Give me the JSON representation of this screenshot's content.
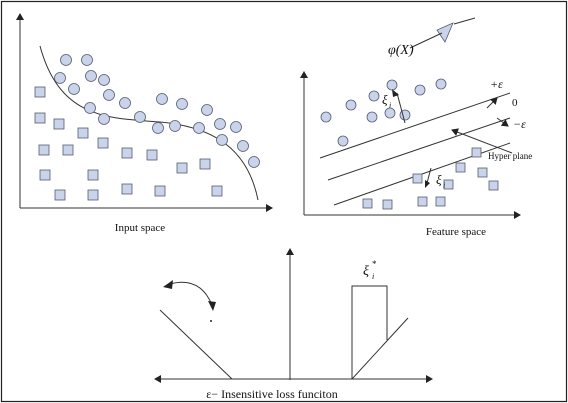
{
  "panels": {
    "input_space": {
      "caption": "Input space"
    },
    "feature_space": {
      "caption": "Feature space",
      "hyperplane_label": "Hyper plane",
      "plus_eps": "+ε",
      "zero": "0",
      "minus_eps": "−ε",
      "xi_upper": "ξ",
      "xi_upper_sub": "i",
      "xi_lower": "ξ",
      "xi_lower_sub": "i"
    },
    "mapping": {
      "label": "φ(X)"
    },
    "loss": {
      "caption": "ε− Insensitive loss funciton",
      "xi_star": "ξ",
      "xi_star_sup": "*",
      "xi_star_sub": "i"
    }
  },
  "colors": {
    "marker_fill": "#c9d3ea",
    "marker_stroke": "#555c70",
    "line": "#333333"
  }
}
